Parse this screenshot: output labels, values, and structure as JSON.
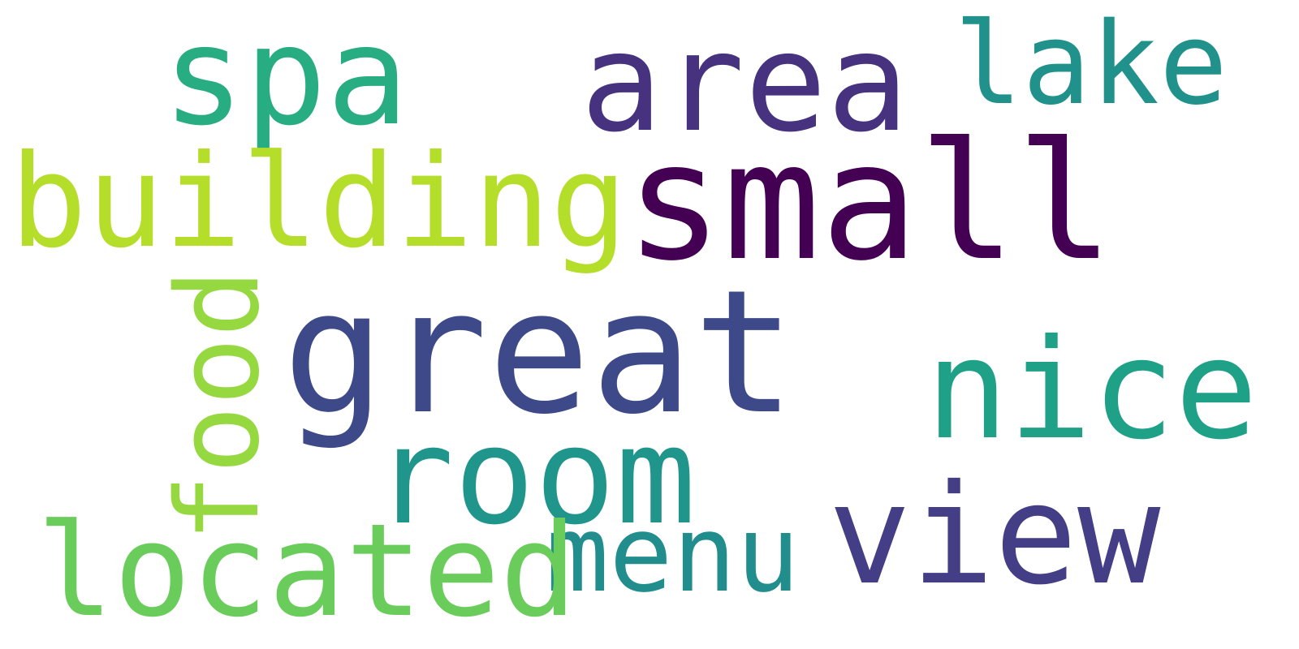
{
  "words": [
    {
      "text": "spa",
      "color": "#27AD81"
    },
    {
      "text": "area",
      "color": "#46327E"
    },
    {
      "text": "lake",
      "color": "#21918C"
    },
    {
      "text": "building",
      "color": "#B5DE2B"
    },
    {
      "text": "small",
      "color": "#440154"
    },
    {
      "text": "food",
      "color": "#95D840"
    },
    {
      "text": "great",
      "color": "#3E4989"
    },
    {
      "text": "nice",
      "color": "#1FA187"
    },
    {
      "text": "room",
      "color": "#1F958B"
    },
    {
      "text": "view",
      "color": "#433E85"
    },
    {
      "text": "menu",
      "color": "#218E8D"
    },
    {
      "text": "located",
      "color": "#6ACD5B"
    }
  ]
}
